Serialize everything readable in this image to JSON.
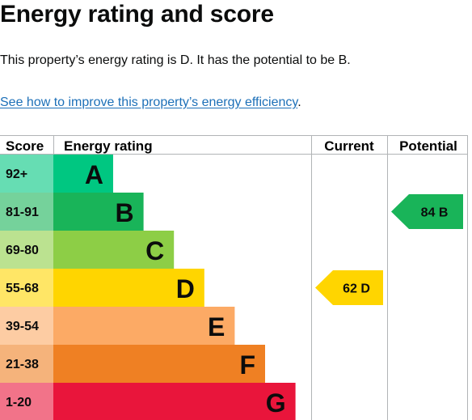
{
  "title": "Energy rating and score",
  "summary": "This property’s energy rating is D. It has the potential to be B.",
  "improve_link": "See how to improve this property’s energy efficiency",
  "improve_link_suffix": ".",
  "colors": {
    "grid": "#b1b4b6",
    "text": "#0b0c0c",
    "A": "#00c781",
    "B": "#19b459",
    "C": "#8dce46",
    "D": "#ffd500",
    "E": "#fcaa65",
    "F": "#ef8023",
    "G": "#e9153b",
    "A_score_bg": "#66ddb3",
    "B_score_bg": "#75d29b",
    "C_score_bg": "#bbe290",
    "D_score_bg": "#ffe666",
    "E_score_bg": "#fdcca3",
    "F_score_bg": "#f5b37b",
    "G_score_bg": "#f27389"
  },
  "chart_data": {
    "type": "table",
    "headers": {
      "score": "Score",
      "rating": "Energy rating",
      "current": "Current",
      "potential": "Potential"
    },
    "bands": [
      {
        "letter": "A",
        "range": "92+"
      },
      {
        "letter": "B",
        "range": "81-91"
      },
      {
        "letter": "C",
        "range": "69-80"
      },
      {
        "letter": "D",
        "range": "55-68"
      },
      {
        "letter": "E",
        "range": "39-54"
      },
      {
        "letter": "F",
        "range": "21-38"
      },
      {
        "letter": "G",
        "range": "1-20"
      }
    ],
    "current": {
      "score": 62,
      "band": "D",
      "label": "62 D"
    },
    "potential": {
      "score": 84,
      "band": "B",
      "label": "84 B"
    }
  }
}
